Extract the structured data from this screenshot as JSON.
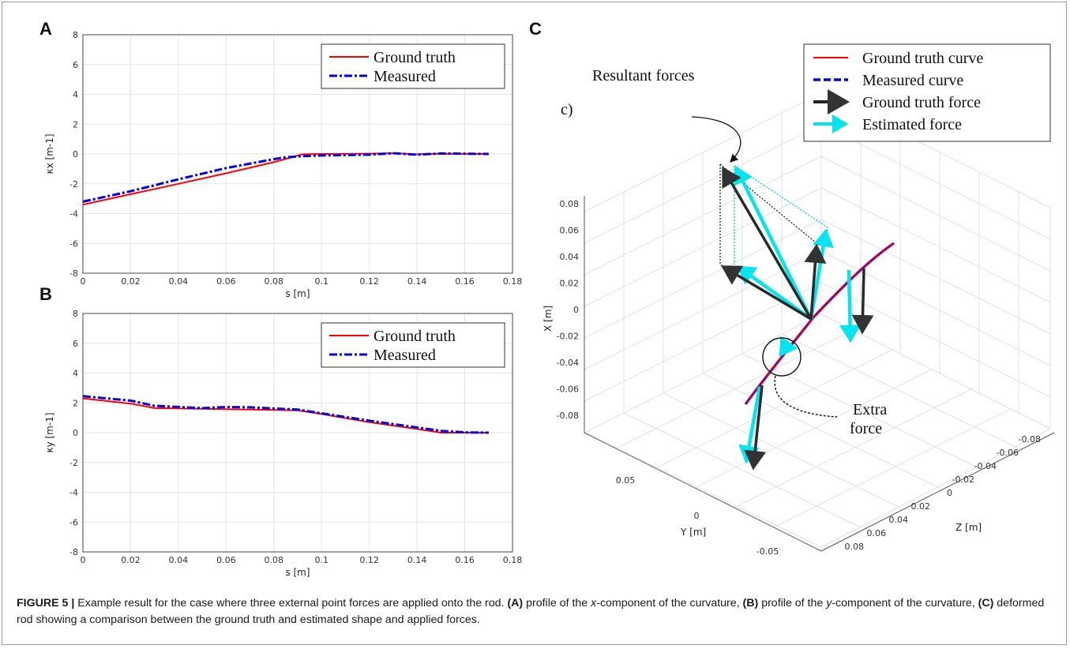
{
  "caption": {
    "label": "FIGURE 5 |",
    "t1": " Example result for the case where three external point forces are applied onto the rod. ",
    "a": "(A)",
    "t2": " profile of the ",
    "xvar": "x",
    "t3": "-component of the curvature, ",
    "b": "(B)",
    "t4": " profile of the ",
    "yvar": "y",
    "t5": "-component of the curvature, ",
    "c": "(C)",
    "t6": " deformed rod showing a comparison between the ground truth and estimated shape and applied forces."
  },
  "colors": {
    "ground_truth": "#ff0000",
    "measured": "#0000e6",
    "gt_force": "#222222",
    "est_force": "#00e5ee",
    "grid": "#e3e3e3"
  },
  "chart_data": [
    {
      "panel": "A",
      "type": "line",
      "xlabel": "s [m]",
      "ylabel": "κx [m-1]",
      "xlim": [
        0,
        0.18
      ],
      "ylim": [
        -8,
        8
      ],
      "xticks": [
        "0",
        "0.02",
        "0.04",
        "0.06",
        "0.08",
        "0.1",
        "0.12",
        "0.14",
        "0.16",
        "0.18"
      ],
      "yticks": [
        "-8",
        "-6",
        "-4",
        "-2",
        "0",
        "2",
        "4",
        "6",
        "8"
      ],
      "grid": true,
      "legend_position": "top-right",
      "series": [
        {
          "name": "Ground truth",
          "style": "solid",
          "color": "#ff0000",
          "x": [
            0,
            0.02,
            0.04,
            0.06,
            0.08,
            0.092,
            0.1,
            0.12,
            0.13,
            0.14,
            0.15,
            0.17
          ],
          "y": [
            -3.4,
            -2.7,
            -2.0,
            -1.3,
            -0.55,
            -0.02,
            0.0,
            0.02,
            0.05,
            -0.02,
            0.02,
            0.0
          ]
        },
        {
          "name": "Measured",
          "style": "dashdot",
          "color": "#0000e6",
          "x": [
            0,
            0.02,
            0.04,
            0.06,
            0.08,
            0.085,
            0.092,
            0.1,
            0.12,
            0.13,
            0.14,
            0.15,
            0.17
          ],
          "y": [
            -3.2,
            -2.5,
            -1.7,
            -0.95,
            -0.35,
            -0.22,
            -0.15,
            -0.1,
            -0.05,
            0.05,
            -0.05,
            0.03,
            0.0
          ]
        }
      ]
    },
    {
      "panel": "B",
      "type": "line",
      "xlabel": "s [m]",
      "ylabel": "κy [m-1]",
      "xlim": [
        0,
        0.18
      ],
      "ylim": [
        -8,
        8
      ],
      "xticks": [
        "0",
        "0.02",
        "0.04",
        "0.06",
        "0.08",
        "0.1",
        "0.12",
        "0.14",
        "0.16",
        "0.18"
      ],
      "yticks": [
        "-8",
        "-6",
        "-4",
        "-2",
        "0",
        "2",
        "4",
        "6",
        "8"
      ],
      "grid": true,
      "legend_position": "top-right",
      "series": [
        {
          "name": "Ground truth",
          "style": "solid",
          "color": "#ff0000",
          "x": [
            0,
            0.02,
            0.03,
            0.05,
            0.07,
            0.09,
            0.1,
            0.12,
            0.14,
            0.15,
            0.17
          ],
          "y": [
            2.3,
            1.95,
            1.65,
            1.6,
            1.55,
            1.5,
            1.25,
            0.7,
            0.25,
            0.0,
            0.0
          ]
        },
        {
          "name": "Measured",
          "style": "dashdot",
          "color": "#0000e6",
          "x": [
            0,
            0.02,
            0.03,
            0.05,
            0.06,
            0.07,
            0.09,
            0.1,
            0.12,
            0.14,
            0.15,
            0.16,
            0.17
          ],
          "y": [
            2.45,
            2.15,
            1.8,
            1.65,
            1.72,
            1.7,
            1.55,
            1.3,
            0.8,
            0.35,
            0.12,
            0.02,
            0.0
          ]
        }
      ]
    },
    {
      "panel": "C",
      "type": "line3d",
      "xlabel": "X [m]",
      "ylabel": "Y [m]",
      "zlabel": "Z [m]",
      "xticks": [
        "-0.08",
        "-0.06",
        "-0.04",
        "-0.02",
        "0",
        "0.02",
        "0.04",
        "0.06",
        "0.08"
      ],
      "yticks": [
        "0.05",
        "0",
        "-0.05"
      ],
      "zticks": [
        "-0.08",
        "-0.06",
        "-0.04",
        "-0.02",
        "0",
        "0.02",
        "0.04",
        "0.06",
        "0.08"
      ],
      "grid": true,
      "legend_position": "top-right",
      "legend": [
        "Ground truth curve",
        "Measured curve",
        "Ground truth force",
        "Estimated force"
      ],
      "annotations": {
        "tag": "c)",
        "resultant": "Resultant forces",
        "extra1": "Extra",
        "extra2": "force"
      }
    }
  ]
}
